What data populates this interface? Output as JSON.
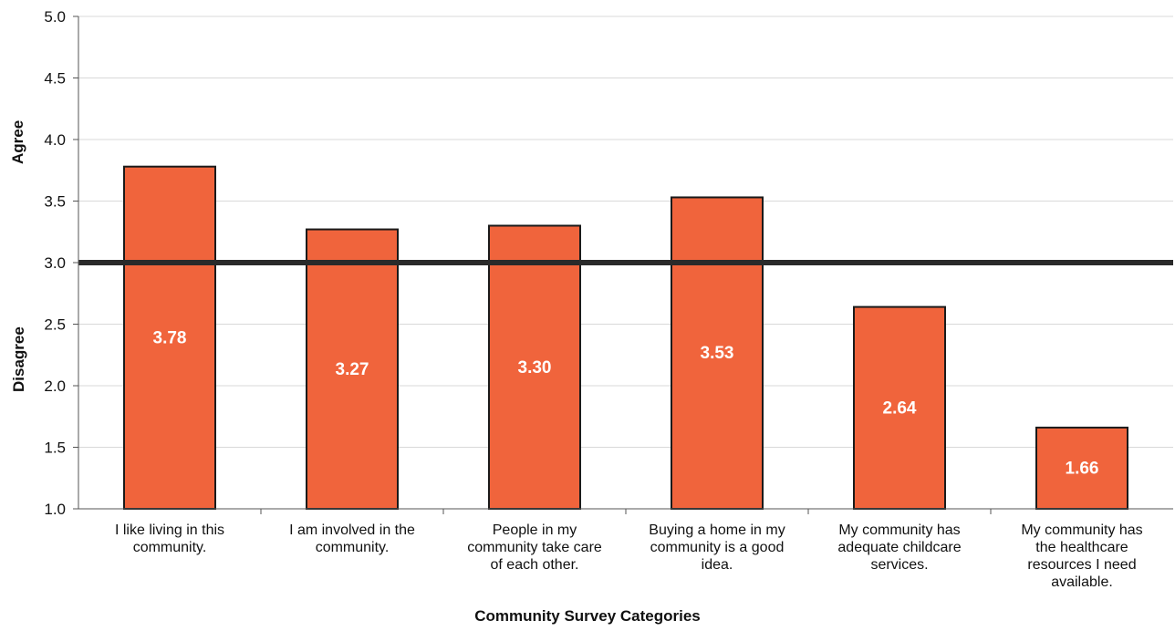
{
  "chart_data": {
    "type": "bar",
    "title": "",
    "xlabel": "Community Survey Categories",
    "ylabel_upper": "Agree",
    "ylabel_lower": "Disagree",
    "ylim": [
      1.0,
      5.0
    ],
    "yticks": [
      "1.0",
      "1.5",
      "2.0",
      "2.5",
      "3.0",
      "3.5",
      "4.0",
      "4.5",
      "5.0"
    ],
    "reference_line": 3.0,
    "categories": [
      [
        "I like living in this",
        "community."
      ],
      [
        "I am involved in the",
        "community."
      ],
      [
        "People in my",
        "community take care",
        "of each other."
      ],
      [
        "Buying a home in my",
        "community is a good",
        "idea."
      ],
      [
        "My community has",
        "adequate childcare",
        "services."
      ],
      [
        "My community has",
        "the healthcare",
        "resources I need",
        "available."
      ]
    ],
    "values": [
      3.78,
      3.27,
      3.3,
      3.53,
      2.64,
      1.66
    ],
    "data_labels": [
      "3.78",
      "3.27",
      "3.30",
      "3.53",
      "2.64",
      "1.66"
    ],
    "colors": {
      "bar": "#f0643c",
      "bar_border": "#1a1a1a",
      "reference": "#2a2a2a",
      "grid": "#d9d9d9",
      "label": "#ffffff"
    },
    "grid": true
  }
}
